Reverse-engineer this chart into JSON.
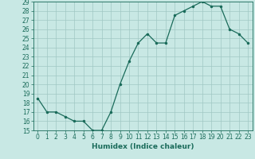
{
  "x": [
    0,
    1,
    2,
    3,
    4,
    5,
    6,
    7,
    8,
    9,
    10,
    11,
    12,
    13,
    14,
    15,
    16,
    17,
    18,
    19,
    20,
    21,
    22,
    23
  ],
  "y": [
    18.5,
    17.0,
    17.0,
    16.5,
    16.0,
    16.0,
    15.0,
    15.0,
    17.0,
    20.0,
    22.5,
    24.5,
    25.5,
    24.5,
    24.5,
    27.5,
    28.0,
    28.5,
    29.0,
    28.5,
    28.5,
    26.0,
    25.5,
    24.5
  ],
  "xlabel": "Humidex (Indice chaleur)",
  "ylim": [
    15,
    29
  ],
  "xlim": [
    -0.5,
    23.5
  ],
  "yticks": [
    15,
    16,
    17,
    18,
    19,
    20,
    21,
    22,
    23,
    24,
    25,
    26,
    27,
    28,
    29
  ],
  "xticks": [
    0,
    1,
    2,
    3,
    4,
    5,
    6,
    7,
    8,
    9,
    10,
    11,
    12,
    13,
    14,
    15,
    16,
    17,
    18,
    19,
    20,
    21,
    22,
    23
  ],
  "line_color": "#1a6b5a",
  "marker_color": "#1a6b5a",
  "bg_color": "#c8e8e4",
  "grid_color": "#a0c8c4",
  "tick_color": "#1a6b5a",
  "label_color": "#1a6b5a",
  "tick_fontsize": 5.5,
  "xlabel_fontsize": 6.5
}
